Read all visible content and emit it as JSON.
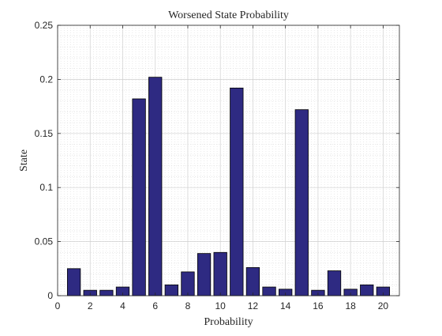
{
  "chart_data": {
    "type": "bar",
    "title": "Worsened State Probability",
    "xlabel": "Probability",
    "ylabel": "State",
    "xlim": [
      0,
      21
    ],
    "ylim": [
      0,
      0.25
    ],
    "x_ticks": [
      0,
      2,
      4,
      6,
      8,
      10,
      12,
      14,
      16,
      18,
      20
    ],
    "y_ticks": [
      0,
      0.05,
      0.1,
      0.15,
      0.2,
      0.25
    ],
    "y_tick_labels": [
      "0",
      "0.05",
      "0.1",
      "0.15",
      "0.2",
      "0.25"
    ],
    "grid": true,
    "minor_grid": true,
    "bar_color": "#2e2a82",
    "bar_edge_color": "#000000",
    "categories": [
      1,
      2,
      3,
      4,
      5,
      6,
      7,
      8,
      9,
      10,
      11,
      12,
      13,
      14,
      15,
      16,
      17,
      18,
      19,
      20
    ],
    "values": [
      0.025,
      0.005,
      0.005,
      0.008,
      0.182,
      0.202,
      0.01,
      0.022,
      0.039,
      0.04,
      0.192,
      0.026,
      0.008,
      0.006,
      0.172,
      0.005,
      0.023,
      0.006,
      0.01,
      0.008
    ]
  }
}
